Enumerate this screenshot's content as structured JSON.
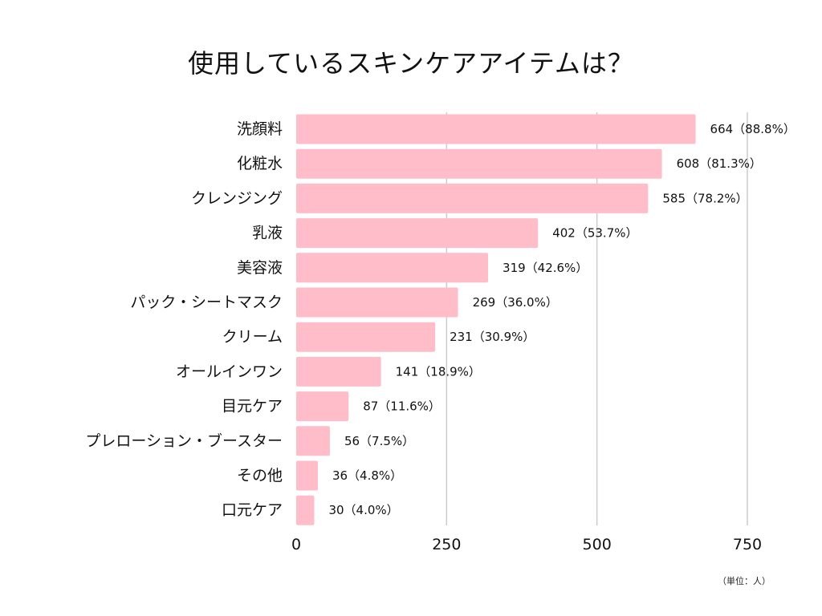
{
  "chart_data": {
    "type": "bar",
    "orientation": "horizontal",
    "title": "使用しているスキンケアアイテムは？",
    "categories": [
      "洗顔料",
      "化粧水",
      "クレンジング",
      "乳液",
      "美容液",
      "パック・シートマスク",
      "クリーム",
      "オールインワン",
      "目元ケア",
      "プレローション・ブースター",
      "その他",
      "口元ケア"
    ],
    "values": [
      664,
      608,
      585,
      402,
      319,
      269,
      231,
      141,
      87,
      56,
      36,
      30
    ],
    "data_labels": [
      "664（88.8%）",
      "608（81.3%）",
      "585（78.2%）",
      "402（53.7%）",
      "319（42.6%）",
      "269（36.0%）",
      "231（30.9%）",
      "141（18.9%）",
      "87（11.6%）",
      "56（7.5%）",
      "36（4.8%）",
      "30（4.0%）"
    ],
    "xlim": [
      0,
      750
    ],
    "x_ticks": [
      0,
      250,
      500,
      750
    ],
    "x_tick_labels": [
      "0",
      "250",
      "500",
      "750"
    ],
    "grid": true,
    "unit_note": "（単位：人）",
    "colors": {
      "bar": "#ffbdca",
      "grid": "#cccccc",
      "text": "#111111"
    }
  }
}
